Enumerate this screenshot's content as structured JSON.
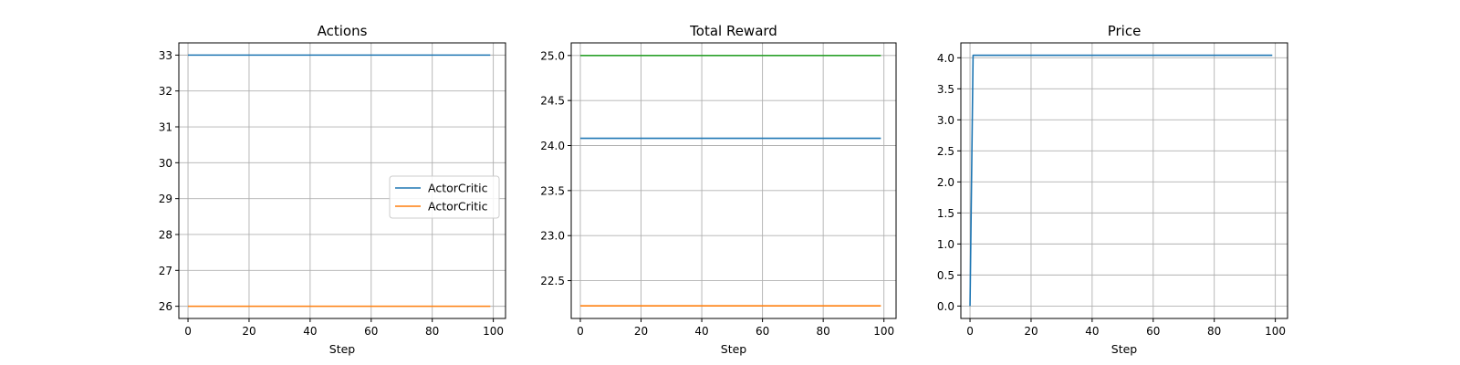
{
  "colors": {
    "blue": "#1f77b4",
    "orange": "#ff7f0e",
    "green": "#2ca02c",
    "grid": "#b0b0b0",
    "frame": "#000000"
  },
  "chart_data": [
    {
      "type": "line",
      "title": "Actions",
      "xlabel": "Step",
      "ylabel": "",
      "xlim": [
        -3,
        104
      ],
      "ylim": [
        25.66,
        33.34
      ],
      "xticks": [
        0,
        20,
        40,
        60,
        80,
        100
      ],
      "yticks": [
        26,
        27,
        28,
        29,
        30,
        31,
        32,
        33
      ],
      "ytick_labels": [
        "26",
        "27",
        "28",
        "29",
        "30",
        "31",
        "32",
        "33"
      ],
      "grid": true,
      "legend": {
        "placement": "center-right"
      },
      "series": [
        {
          "name": "ActorCritic",
          "color": "#1f77b4",
          "x": [
            0,
            99
          ],
          "y": [
            33,
            33
          ]
        },
        {
          "name": "ActorCritic",
          "color": "#ff7f0e",
          "x": [
            0,
            99
          ],
          "y": [
            26,
            26
          ]
        }
      ]
    },
    {
      "type": "line",
      "title": "Total Reward",
      "xlabel": "Step",
      "ylabel": "",
      "xlim": [
        -3,
        104
      ],
      "ylim": [
        22.08,
        25.14
      ],
      "xticks": [
        0,
        20,
        40,
        60,
        80,
        100
      ],
      "yticks": [
        22.5,
        23.0,
        23.5,
        24.0,
        24.5,
        25.0
      ],
      "ytick_labels": [
        "22.5",
        "23.0",
        "23.5",
        "24.0",
        "24.5",
        "25.0"
      ],
      "grid": true,
      "series": [
        {
          "color": "#2ca02c",
          "x": [
            0,
            99
          ],
          "y": [
            25.0,
            25.0
          ]
        },
        {
          "color": "#1f77b4",
          "x": [
            0,
            99
          ],
          "y": [
            24.08,
            24.08
          ]
        },
        {
          "color": "#ff7f0e",
          "x": [
            0,
            99
          ],
          "y": [
            22.22,
            22.22
          ]
        }
      ]
    },
    {
      "type": "line",
      "title": "Price",
      "xlabel": "Step",
      "ylabel": "",
      "xlim": [
        -3,
        104
      ],
      "ylim": [
        -0.2,
        4.24
      ],
      "xticks": [
        0,
        20,
        40,
        60,
        80,
        100
      ],
      "yticks": [
        0.0,
        0.5,
        1.0,
        1.5,
        2.0,
        2.5,
        3.0,
        3.5,
        4.0
      ],
      "ytick_labels": [
        "0.0",
        "0.5",
        "1.0",
        "1.5",
        "2.0",
        "2.5",
        "3.0",
        "3.5",
        "4.0"
      ],
      "grid": true,
      "series": [
        {
          "color": "#1f77b4",
          "x": [
            0,
            1,
            99
          ],
          "y": [
            0.0,
            4.04,
            4.04
          ]
        }
      ]
    }
  ]
}
